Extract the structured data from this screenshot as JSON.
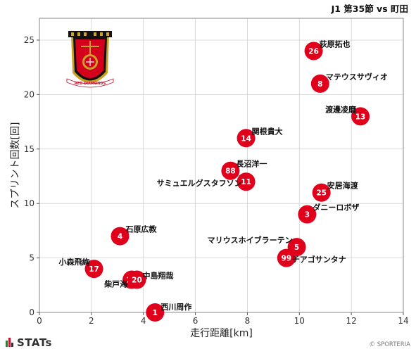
{
  "header": {
    "subtitle": "J1 第35節 vs 町田"
  },
  "footer": {
    "brand": "STATs",
    "copyright": "© SPORTERIA"
  },
  "crest": {
    "text": "RED DIAMONDS",
    "colors": {
      "red": "#d5001c",
      "gold": "#c9a227",
      "black": "#111111"
    }
  },
  "colors": {
    "marker": "#e0001b",
    "marker_text": "#ffffff",
    "grid": "#d0d0d0",
    "frame": "#888888"
  },
  "chart_data": {
    "type": "scatter",
    "xlabel": "走行距離[km]",
    "ylabel": "スプリント回数[回]",
    "xlim": [
      0,
      14
    ],
    "ylim": [
      0,
      27
    ],
    "xticks": [
      0,
      2,
      4,
      6,
      8,
      10,
      12,
      14
    ],
    "yticks": [
      0,
      5,
      10,
      15,
      20,
      25
    ],
    "grid": true,
    "points": [
      {
        "number": "26",
        "name": "荻原拓也",
        "x": 10.55,
        "y": 24.0
      },
      {
        "number": "8",
        "name": "マテウスサヴィオ",
        "x": 10.8,
        "y": 21.0
      },
      {
        "number": "13",
        "name": "渡邊凌磨",
        "x": 12.35,
        "y": 18.0
      },
      {
        "number": "14",
        "name": "関根貴大",
        "x": 7.95,
        "y": 16.0
      },
      {
        "number": "88",
        "name": "長沼洋一",
        "x": 7.35,
        "y": 13.0
      },
      {
        "number": "11",
        "name": "サミュエルグスタフソン",
        "x": 7.95,
        "y": 12.0
      },
      {
        "number": "25",
        "name": "安居海渡",
        "x": 10.85,
        "y": 11.0
      },
      {
        "number": "3",
        "name": "ダニーロボザ",
        "x": 10.3,
        "y": 9.0
      },
      {
        "number": "4",
        "name": "石原広教",
        "x": 3.1,
        "y": 7.0
      },
      {
        "number": "5",
        "name": "マリウスホイブラーテン",
        "x": 9.9,
        "y": 6.0
      },
      {
        "number": "99",
        "name": "チアゴサンタナ",
        "x": 9.5,
        "y": 5.0
      },
      {
        "number": "17",
        "name": "小森飛絢",
        "x": 2.1,
        "y": 4.0
      },
      {
        "number": "20",
        "name": "柴戸海",
        "x": 3.55,
        "y": 3.0
      },
      {
        "number": "20",
        "name": "中島翔哉",
        "x": 3.75,
        "y": 3.0
      },
      {
        "number": "1",
        "name": "西川周作",
        "x": 4.45,
        "y": 0.0
      }
    ]
  }
}
